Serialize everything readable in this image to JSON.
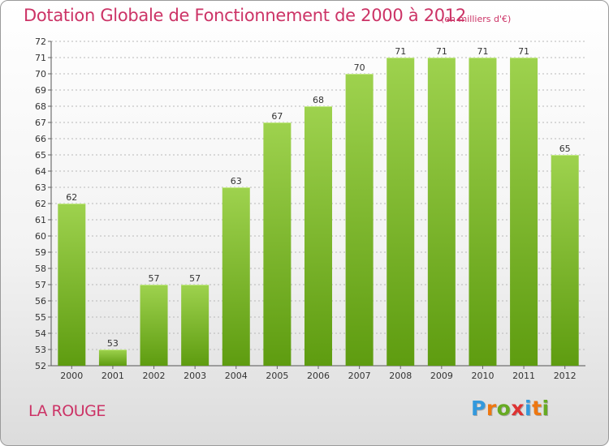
{
  "header": {
    "title": "Dotation Globale de Fonctionnement de 2000 à 2012",
    "unit": "(en milliers d'€)"
  },
  "footer": {
    "commune": "LA ROUGE",
    "logo_letters": [
      "P",
      "r",
      "o",
      "x",
      "i",
      "t",
      "i"
    ],
    "logo_colors": [
      "#3399dd",
      "#ee7711",
      "#66aa22",
      "#dd3333",
      "#3399dd",
      "#ee7711",
      "#66aa22"
    ]
  },
  "chart_data": {
    "type": "bar",
    "title": "Dotation Globale de Fonctionnement de 2000 à 2012",
    "unit": "(en milliers d'€)",
    "categories": [
      "2000",
      "2001",
      "2002",
      "2003",
      "2004",
      "2005",
      "2006",
      "2007",
      "2008",
      "2009",
      "2010",
      "2011",
      "2012"
    ],
    "values": [
      62,
      53,
      57,
      57,
      63,
      67,
      68,
      70,
      71,
      71,
      71,
      71,
      65
    ],
    "ylim": [
      52,
      72
    ],
    "yticks": [
      52,
      53,
      54,
      55,
      56,
      57,
      58,
      59,
      60,
      61,
      62,
      63,
      64,
      65,
      66,
      67,
      68,
      69,
      70,
      71,
      72
    ],
    "grid": true,
    "bar_color_top": "#9ed24e",
    "bar_color_bottom": "#5e9c10"
  }
}
